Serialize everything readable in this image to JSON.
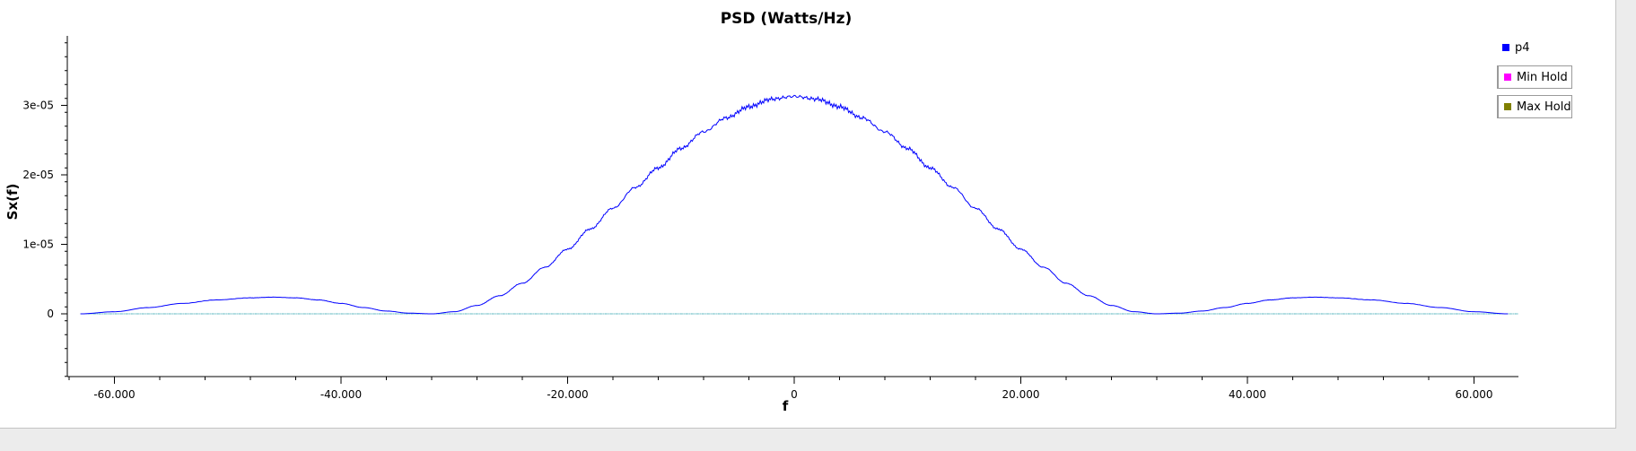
{
  "chart_data": {
    "type": "line",
    "title": "PSD (Watts/Hz)",
    "xlabel": "f",
    "ylabel": "Sx(f)",
    "xlim": [
      -64000,
      64000
    ],
    "ylim": [
      -9e-06,
      4e-05
    ],
    "x_ticks": [
      -60000,
      -40000,
      -20000,
      0,
      20000,
      40000,
      60000
    ],
    "x_tick_labels": [
      "-60.000",
      "-40.000",
      "-20.000",
      "0",
      "20.000",
      "40.000",
      "60.000"
    ],
    "y_ticks": [
      0,
      1e-05,
      2e-05,
      3e-05
    ],
    "y_tick_labels": [
      "0",
      "1e-05",
      "2e-05",
      "3e-05"
    ],
    "grid": false,
    "legend_position": "right",
    "series": [
      {
        "name": "p4",
        "color": "#0000ff",
        "x": [
          -63000,
          -60000,
          -57000,
          -54000,
          -51000,
          -48000,
          -46000,
          -44000,
          -42000,
          -40000,
          -38000,
          -36000,
          -34000,
          -32000,
          -30000,
          -28000,
          -26000,
          -24000,
          -22000,
          -20000,
          -18000,
          -16000,
          -14000,
          -12000,
          -10000,
          -8000,
          -6000,
          -4000,
          -2000,
          0,
          2000,
          4000,
          6000,
          8000,
          10000,
          12000,
          14000,
          16000,
          18000,
          20000,
          22000,
          24000,
          26000,
          28000,
          30000,
          32000,
          34000,
          36000,
          38000,
          40000,
          42000,
          44000,
          46000,
          48000,
          51000,
          54000,
          57000,
          60000,
          63000
        ],
        "y": [
          0.0,
          3e-07,
          9e-07,
          1.5e-06,
          2e-06,
          2.3e-06,
          2.4e-06,
          2.3e-06,
          2e-06,
          1.5e-06,
          9e-07,
          4e-07,
          1e-07,
          0.0,
          3e-07,
          1.2e-06,
          2.6e-06,
          4.4e-06,
          6.7e-06,
          9.3e-06,
          1.22e-05,
          1.52e-05,
          1.82e-05,
          2.1e-05,
          2.38e-05,
          2.62e-05,
          2.82e-05,
          2.98e-05,
          3.09e-05,
          3.13e-05,
          3.09e-05,
          2.98e-05,
          2.82e-05,
          2.62e-05,
          2.38e-05,
          2.1e-05,
          1.82e-05,
          1.52e-05,
          1.22e-05,
          9.3e-06,
          6.7e-06,
          4.4e-06,
          2.6e-06,
          1.2e-06,
          3e-07,
          0.0,
          1e-07,
          4e-07,
          9e-07,
          1.5e-06,
          2e-06,
          2.3e-06,
          2.4e-06,
          2.3e-06,
          2e-06,
          1.5e-06,
          9e-07,
          3e-07,
          0.0
        ]
      },
      {
        "name": "Min Hold",
        "color": "#ff00ff",
        "x": [
          -63000,
          63000
        ],
        "y": [
          0.0,
          0.0
        ]
      },
      {
        "name": "Max Hold",
        "color": "#808000",
        "x": [
          -63000,
          63000
        ],
        "y": [
          0.0,
          0.0
        ]
      }
    ]
  }
}
